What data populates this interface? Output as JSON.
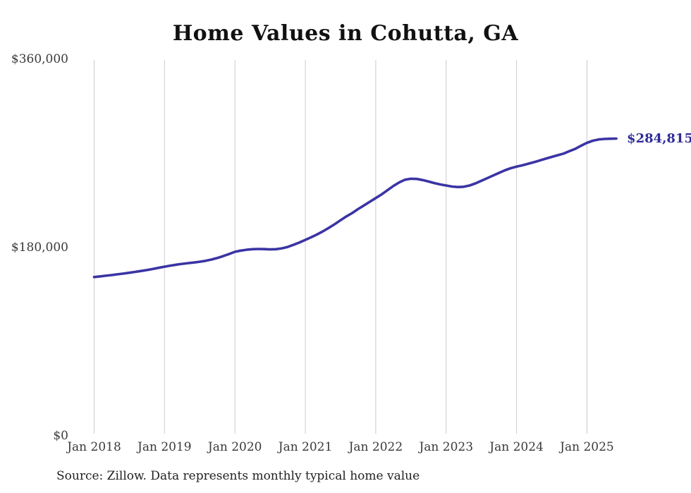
{
  "page": {
    "background": "#ffffff"
  },
  "source_note": "Source: Zillow. Data represents monthly typical home value",
  "chart_data": {
    "type": "line",
    "title": "Home Values in Cohutta, GA",
    "xlabel": "",
    "ylabel": "",
    "x_frequency": "monthly",
    "x_start": "Jan 2018",
    "x_end": "Jun 2025",
    "x_tick_labels": [
      "Jan 2018",
      "Jan 2019",
      "Jan 2020",
      "Jan 2021",
      "Jan 2022",
      "Jan 2023",
      "Jan 2024",
      "Jan 2025"
    ],
    "y_tick_labels": [
      "$0",
      "$180,000",
      "$360,000"
    ],
    "y_tick_values": [
      0,
      180000,
      360000
    ],
    "ylim": [
      0,
      360000
    ],
    "grid": "vertical-only",
    "legend": "none",
    "end_label": "$284,815",
    "end_value": 284815,
    "line_color": "#3a34a4",
    "label_color": "#2e2b96",
    "gridline_color": "#cccccc",
    "axis_text_color": "#3a3a3a",
    "values": [
      152500,
      153100,
      153800,
      154400,
      155100,
      155800,
      156600,
      157400,
      158300,
      159200,
      160200,
      161300,
      162400,
      163400,
      164300,
      165100,
      165800,
      166400,
      167100,
      168000,
      169200,
      170700,
      172500,
      174500,
      176600,
      177800,
      178600,
      179100,
      179300,
      179200,
      178900,
      179100,
      179900,
      181300,
      183300,
      185500,
      188000,
      190500,
      193200,
      196200,
      199500,
      203000,
      206800,
      210500,
      213700,
      217500,
      221000,
      224500,
      228000,
      231500,
      235500,
      239500,
      243000,
      245500,
      246500,
      246300,
      245200,
      243800,
      242300,
      241000,
      240000,
      239000,
      238500,
      238800,
      240000,
      242000,
      244500,
      247000,
      249500,
      252000,
      254500,
      256500,
      258000,
      259300,
      260800,
      262300,
      264000,
      265700,
      267300,
      268900,
      270500,
      272800,
      275000,
      278000,
      280800,
      282800,
      284000,
      284500,
      284700,
      284815
    ]
  }
}
